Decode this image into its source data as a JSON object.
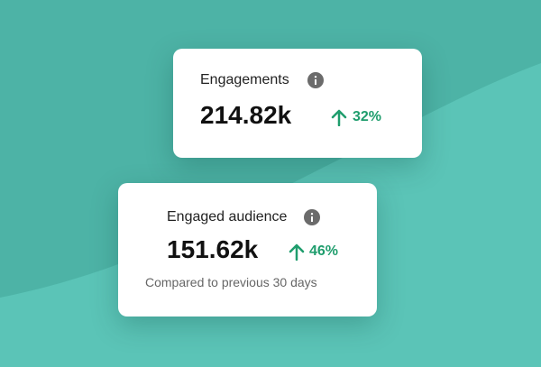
{
  "cards": [
    {
      "title": "Engagements",
      "value": "214.82k",
      "change": "32%"
    },
    {
      "title": "Engaged audience",
      "value": "151.62k",
      "change": "46%",
      "note": "Compared to previous 30 days"
    }
  ]
}
